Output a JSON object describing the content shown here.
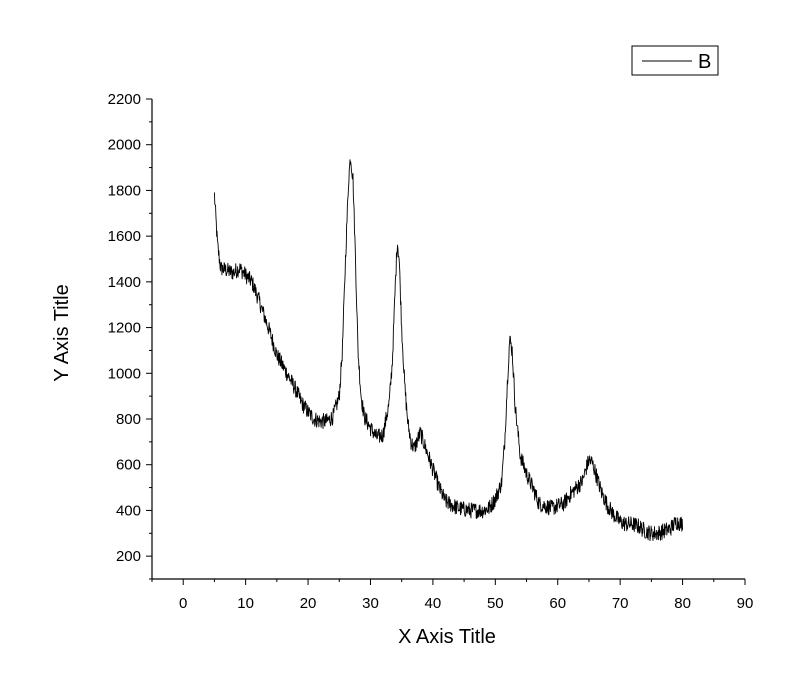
{
  "chart_data": {
    "type": "line",
    "xlabel": "X Axis Title",
    "ylabel": "Y Axis Title",
    "xlim": [
      -5,
      90
    ],
    "ylim": [
      100,
      2200
    ],
    "x_ticks": [
      0,
      10,
      20,
      30,
      40,
      50,
      60,
      70,
      80,
      90
    ],
    "y_ticks": [
      200,
      400,
      600,
      800,
      1000,
      1200,
      1400,
      1600,
      1800,
      2000,
      2200
    ],
    "x_tick_labels": [
      "0",
      "10",
      "20",
      "30",
      "40",
      "50",
      "60",
      "70",
      "80",
      "90"
    ],
    "y_tick_labels": [
      "200",
      "400",
      "600",
      "800",
      "1000",
      "1200",
      "1400",
      "1600",
      "1800",
      "2000",
      "2200"
    ],
    "grid": false,
    "legend_position": "top-right",
    "line_color": "#000000",
    "series": [
      {
        "name": "B",
        "noise_amplitude": 35,
        "x": [
          5,
          5.5,
          6,
          7,
          8,
          9,
          10,
          11,
          12,
          13,
          14,
          15,
          16,
          17,
          18,
          19,
          20,
          21,
          22,
          23,
          24,
          25,
          25.5,
          26,
          26.5,
          26.8,
          27.2,
          27.6,
          28,
          28.5,
          29,
          30,
          31,
          32,
          33,
          33.5,
          34,
          34.3,
          34.6,
          35,
          35.5,
          36,
          36.5,
          37,
          38,
          39,
          40,
          41,
          42,
          44,
          46,
          48,
          49,
          50,
          51,
          51.5,
          52,
          52.3,
          52.7,
          53.2,
          54,
          55,
          56,
          57,
          58,
          59,
          60,
          61,
          62,
          63,
          64,
          64.5,
          65,
          65.5,
          66,
          67,
          68,
          69,
          70,
          71,
          72,
          73,
          74,
          75,
          76,
          77,
          78,
          79,
          80
        ],
        "y": [
          1780,
          1560,
          1460,
          1450,
          1440,
          1460,
          1430,
          1400,
          1330,
          1250,
          1170,
          1080,
          1030,
          980,
          930,
          870,
          830,
          800,
          790,
          790,
          810,
          900,
          1100,
          1500,
          1850,
          1950,
          1850,
          1500,
          1100,
          900,
          810,
          760,
          720,
          730,
          870,
          1050,
          1400,
          1580,
          1500,
          1200,
          940,
          780,
          700,
          670,
          740,
          660,
          580,
          500,
          440,
          410,
          400,
          400,
          410,
          450,
          520,
          700,
          1000,
          1150,
          1100,
          850,
          640,
          560,
          500,
          430,
          420,
          410,
          420,
          430,
          470,
          500,
          530,
          580,
          620,
          610,
          570,
          480,
          420,
          380,
          350,
          340,
          340,
          330,
          310,
          300,
          300,
          310,
          320,
          350,
          340
        ]
      }
    ]
  }
}
